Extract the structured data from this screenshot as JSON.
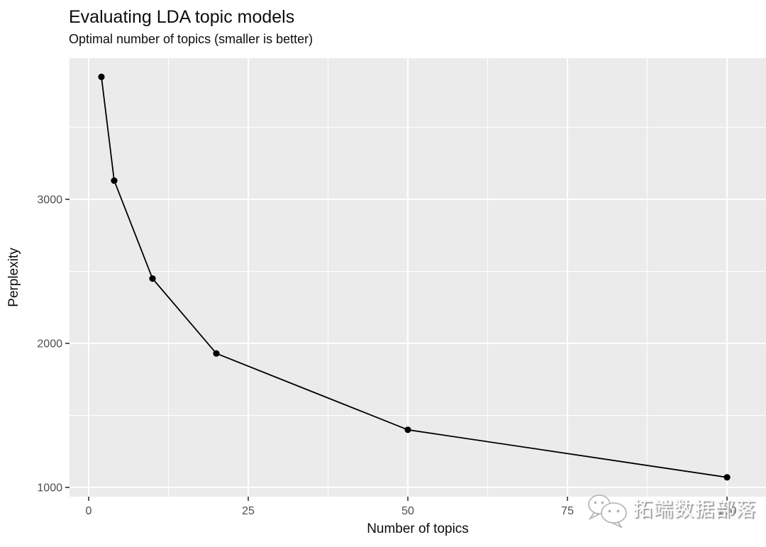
{
  "title": "Evaluating LDA topic models",
  "subtitle": "Optimal number of topics (smaller is better)",
  "watermark": {
    "icon": "wechat-chat-bubbles-icon",
    "text": "拓端数据部落"
  },
  "chart_data": {
    "type": "line",
    "title": "Evaluating LDA topic models",
    "subtitle": "Optimal number of topics (smaller is better)",
    "xlabel": "Number of topics",
    "ylabel": "Perplexity",
    "series": [
      {
        "name": "perplexity",
        "x": [
          2,
          4,
          10,
          20,
          50,
          100
        ],
        "y": [
          3850,
          3130,
          2450,
          1930,
          1400,
          1070
        ]
      }
    ],
    "x_ticks": [
      0,
      25,
      50,
      75,
      100
    ],
    "y_ticks": [
      1000,
      2000,
      3000
    ],
    "x_minor_gridlines": [
      12.5,
      37.5,
      62.5,
      87.5
    ],
    "y_minor_gridlines": [
      1500,
      2500,
      3500
    ],
    "x_domain": [
      -3,
      106.1
    ],
    "y_domain": [
      936,
      3980
    ],
    "grid": "major-and-minor, white on grey panel",
    "legend_position": "none",
    "colors": {
      "panel_bg": "#EBEBEB",
      "grid": "#FFFFFF",
      "line": "#000000",
      "point": "#000000",
      "tick_label": "#4D4D4D",
      "tick_mark": "#333333",
      "text": "#0D0D0D"
    }
  }
}
